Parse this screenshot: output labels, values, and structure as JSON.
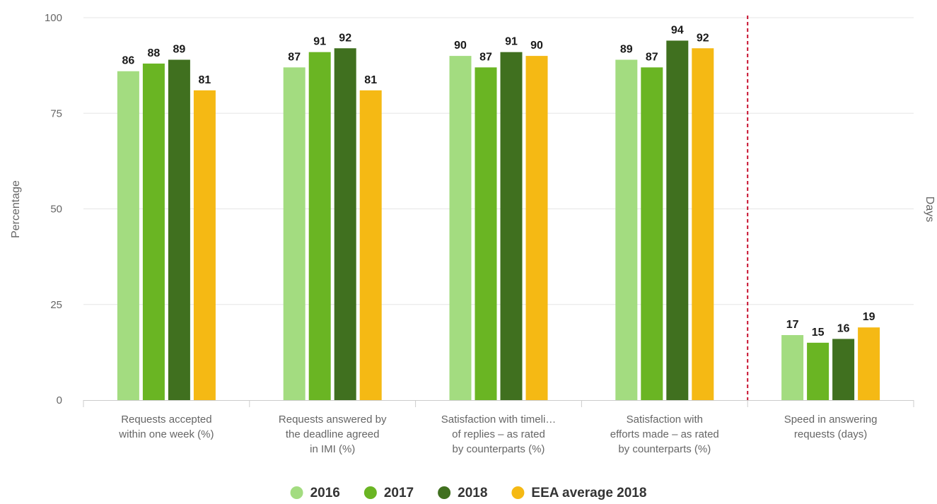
{
  "chart_data": {
    "type": "bar",
    "title": "",
    "xlabel": "",
    "ylabel": "Percentage",
    "ylabel_right": "Days",
    "ylim": [
      0,
      100
    ],
    "yticks": [
      0,
      25,
      50,
      75,
      100
    ],
    "grid": true,
    "legend_position": "bottom-center",
    "categories": [
      [
        "Requests accepted",
        "within one week (%)"
      ],
      [
        "Requests answered by",
        "the deadline agreed",
        "in IMI (%)"
      ],
      [
        "Satisfaction with timeli…",
        "of replies – as rated",
        "by counterparts (%)"
      ],
      [
        "Satisfaction with",
        "efforts made – as rated",
        "by counterparts (%)"
      ],
      [
        "Speed in answering",
        "requests (days)"
      ]
    ],
    "series": [
      {
        "name": "2016",
        "color": "#a3dc80",
        "values": [
          86,
          87,
          90,
          89,
          17
        ]
      },
      {
        "name": "2017",
        "color": "#6ab523",
        "values": [
          88,
          91,
          87,
          87,
          15
        ]
      },
      {
        "name": "2018",
        "color": "#40701f",
        "values": [
          89,
          92,
          91,
          94,
          16
        ]
      },
      {
        "name": "EEA average 2018",
        "color": "#f5b914",
        "values": [
          81,
          81,
          90,
          92,
          19
        ]
      }
    ],
    "divider_after_category": 4,
    "divider_color": "#c8102e"
  }
}
